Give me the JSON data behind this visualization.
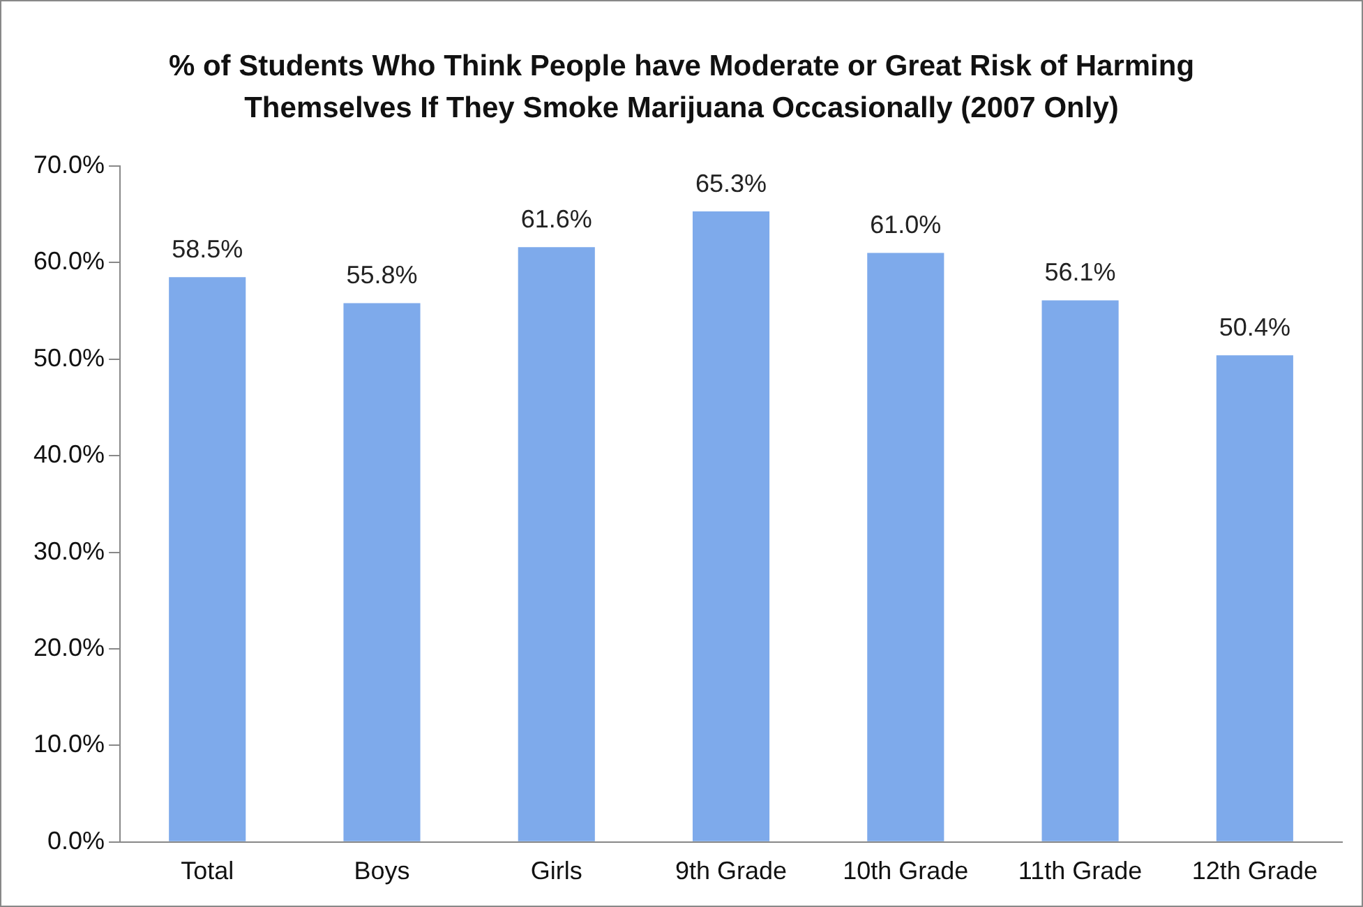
{
  "chart_data": {
    "type": "bar",
    "title": "% of Students Who Think People have Moderate or Great Risk of Harming Themselves If They Smoke Marijuana Occasionally (2007 Only)",
    "categories": [
      "Total",
      "Boys",
      "Girls",
      "9th Grade",
      "10th Grade",
      "11th Grade",
      "12th Grade"
    ],
    "values": [
      58.5,
      55.8,
      61.6,
      65.3,
      61.0,
      56.1,
      50.4
    ],
    "value_labels": [
      "58.5%",
      "55.8%",
      "61.6%",
      "65.3%",
      "61.0%",
      "56.1%",
      "50.4%"
    ],
    "color": "#7eaaeb",
    "ylim": [
      0,
      70
    ],
    "yticks": [
      {
        "value": 0,
        "label": "0.0%"
      },
      {
        "value": 10,
        "label": "10.0%"
      },
      {
        "value": 20,
        "label": "20.0%"
      },
      {
        "value": 30,
        "label": "30.0%"
      },
      {
        "value": 40,
        "label": "40.0%"
      },
      {
        "value": 50,
        "label": "50.0%"
      },
      {
        "value": 60,
        "label": "60.0%"
      },
      {
        "value": 70,
        "label": "70.0%"
      }
    ],
    "grid": false,
    "legend": false
  }
}
